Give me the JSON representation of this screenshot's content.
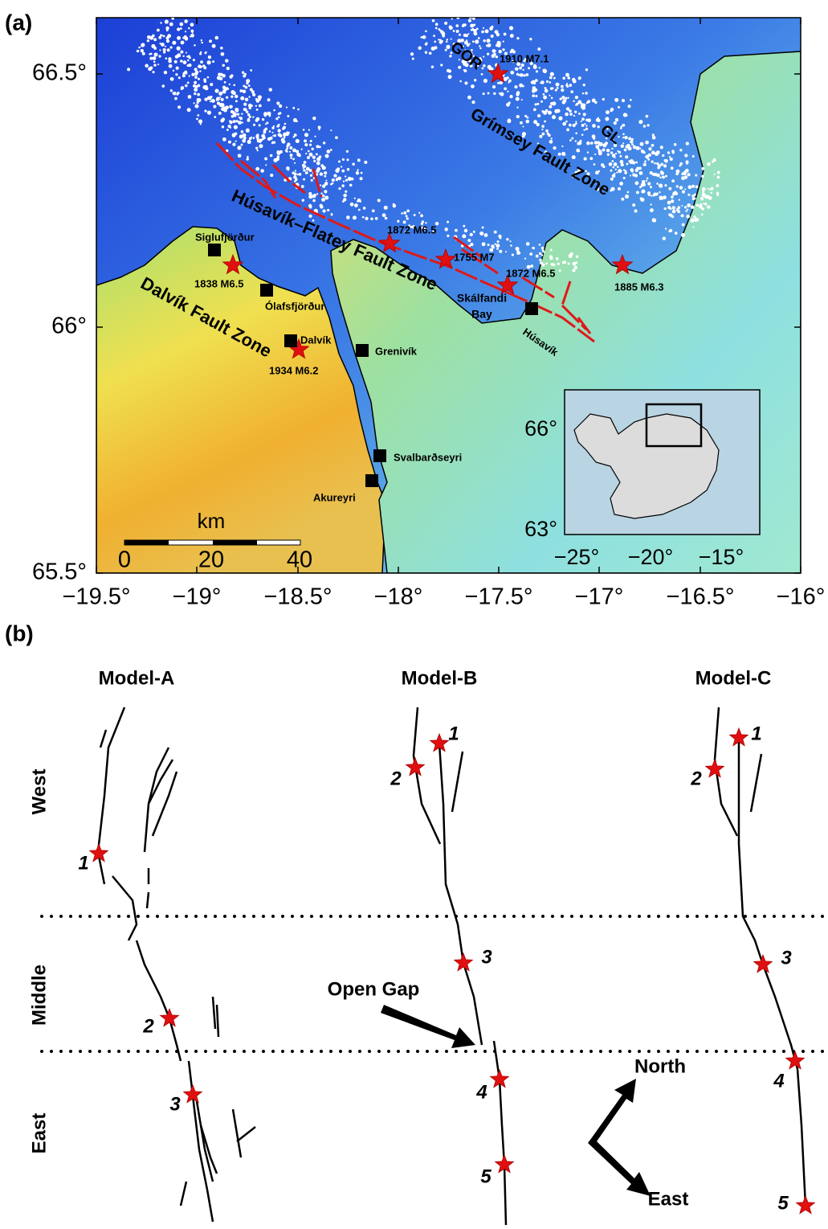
{
  "panel_a": {
    "label": "(a)",
    "x_ticks": [
      "−19.5°",
      "−19°",
      "−18.5°",
      "−18°",
      "−17.5°",
      "−17°",
      "−16.5°",
      "−16°"
    ],
    "y_ticks": [
      "66.5°",
      "66°",
      "65.5°"
    ],
    "fault_zones": [
      "GOR",
      "GL",
      "Grímsey Fault Zone",
      "Húsavík–Flatey Fault Zone",
      "Dalvík Fault Zone"
    ],
    "earthquakes": [
      "1910 M7.1",
      "1872 M6.5",
      "1755 M7",
      "1872 M6.5",
      "1838 M6.5",
      "1934 M6.2",
      "1885 M6.3"
    ],
    "towns": [
      "Siglufjörður",
      "Ólafsfjörður",
      "Dalvík",
      "Grenivík",
      "Svalbarðseyri",
      "Akureyri",
      "Húsavík"
    ],
    "bay": [
      "Skálfandi",
      "Bay"
    ],
    "scale": {
      "unit": "km",
      "ticks": [
        "0",
        "20",
        "40"
      ]
    },
    "inset": {
      "y_ticks": [
        "66°",
        "63°"
      ],
      "x_ticks": [
        "−25°",
        "−20°",
        "−15°"
      ]
    }
  },
  "panel_b": {
    "label": "(b)",
    "models": [
      "Model-A",
      "Model-B",
      "Model-C"
    ],
    "segments": [
      "West",
      "Middle",
      "East"
    ],
    "annotation": "Open Gap",
    "directions": [
      "North",
      "East"
    ],
    "model_a_stars": [
      "1",
      "2",
      "3"
    ],
    "model_b_stars": [
      "1",
      "2",
      "3",
      "4",
      "5"
    ],
    "model_c_stars": [
      "1",
      "2",
      "3",
      "4",
      "5"
    ]
  }
}
